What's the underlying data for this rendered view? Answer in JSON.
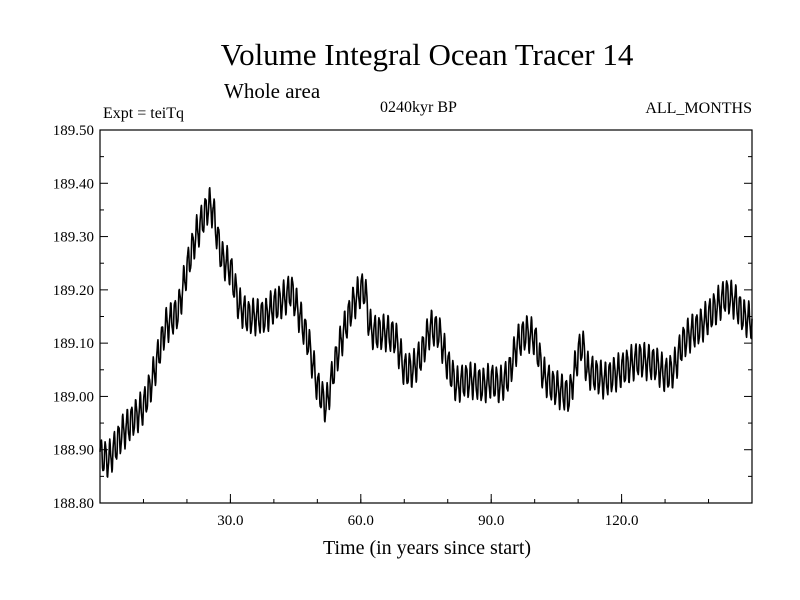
{
  "chart_data": {
    "type": "line",
    "title": "Volume Integral Ocean Tracer 14",
    "subtitle": "Whole area",
    "expt_label": "Expt = teiTq",
    "period_label": "0240kyr BP",
    "months_label": "ALL_MONTHS",
    "xlabel": "Time (in years since start)",
    "ylabel": "",
    "xlim": [
      0,
      150
    ],
    "ylim": [
      188.8,
      189.5
    ],
    "x_ticks": [
      30,
      60,
      90,
      120
    ],
    "x_tick_labels": [
      "30.0",
      "60.0",
      "90.0",
      "120.0"
    ],
    "y_ticks": [
      188.8,
      188.9,
      189.0,
      189.1,
      189.2,
      189.3,
      189.4,
      189.5
    ],
    "y_tick_labels": [
      "188.80",
      "188.90",
      "189.00",
      "189.10",
      "189.20",
      "189.30",
      "189.40",
      "189.50"
    ],
    "grid": false,
    "series": [
      {
        "name": "Volume Integral Ocean Tracer 14",
        "trend": {
          "x": [
            0,
            2,
            5,
            8,
            10,
            12,
            15,
            18,
            20,
            22,
            24,
            25,
            26,
            27,
            28,
            30,
            32,
            34,
            36,
            38,
            40,
            42,
            44,
            46,
            48,
            50,
            52,
            54,
            56,
            58,
            60,
            61,
            62,
            63,
            66,
            68,
            70,
            72,
            74,
            76,
            78,
            80,
            82,
            84,
            86,
            88,
            90,
            92,
            94,
            96,
            98,
            100,
            102,
            104,
            106,
            108,
            110,
            111,
            112,
            114,
            116,
            120,
            124,
            128,
            130,
            132,
            134,
            136,
            138,
            140,
            142,
            144,
            146,
            148,
            150
          ],
          "values": [
            188.89,
            188.88,
            188.93,
            188.96,
            188.98,
            189.03,
            189.13,
            189.16,
            189.24,
            189.3,
            189.34,
            189.36,
            189.35,
            189.3,
            189.26,
            189.24,
            189.17,
            189.15,
            189.15,
            189.15,
            189.17,
            189.18,
            189.2,
            189.15,
            189.1,
            189.02,
            188.98,
            189.06,
            189.12,
            189.17,
            189.2,
            189.2,
            189.13,
            189.12,
            189.12,
            189.11,
            189.05,
            189.05,
            189.08,
            189.13,
            189.12,
            189.06,
            189.02,
            189.03,
            189.03,
            189.02,
            189.03,
            189.02,
            189.04,
            189.1,
            189.12,
            189.11,
            189.04,
            189.02,
            189.01,
            189.0,
            189.08,
            189.1,
            189.05,
            189.04,
            189.03,
            189.05,
            189.07,
            189.06,
            189.04,
            189.05,
            189.1,
            189.12,
            189.13,
            189.15,
            189.17,
            189.19,
            189.18,
            189.15,
            189.14
          ]
        },
        "oscillation": {
          "period_years": 1.0,
          "amplitude": 0.03
        }
      }
    ]
  }
}
